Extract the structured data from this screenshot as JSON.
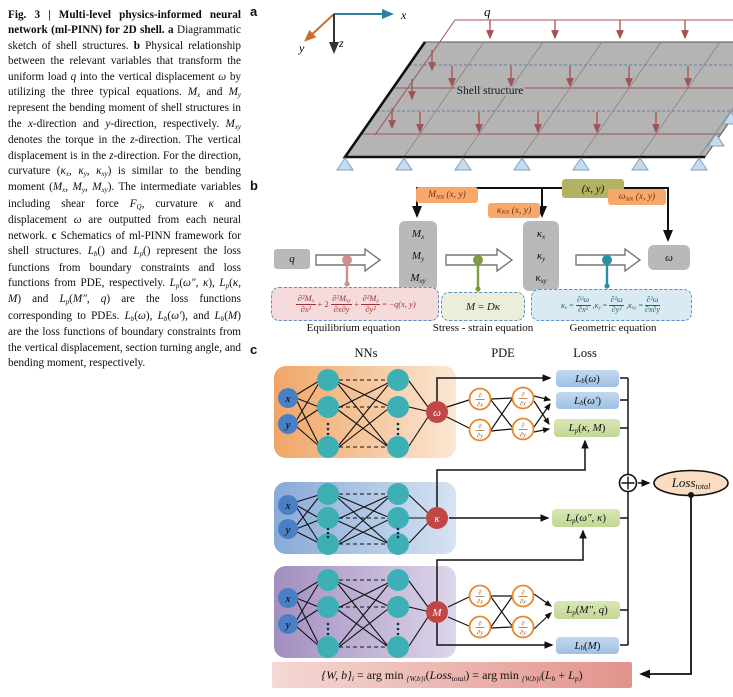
{
  "caption": {
    "segments": [
      {
        "t": "Fig. 3 | Multi-level physics-informed neural network (ml-PINN) for 2D shell. ",
        "s": "b"
      },
      {
        "t": "a",
        "s": "b"
      },
      {
        "t": " Diagrammatic sketch of shell structures. ",
        "s": ""
      },
      {
        "t": "b",
        "s": "b"
      },
      {
        "t": " Physical relationship between the relevant variables that transform the uniform load ",
        "s": ""
      },
      {
        "t": "q",
        "s": "i"
      },
      {
        "t": " into the vertical displacement ",
        "s": ""
      },
      {
        "t": "ω",
        "s": "i"
      },
      {
        "t": " by utilizing the three typical equations. ",
        "s": ""
      },
      {
        "t": "M",
        "s": "i"
      },
      {
        "t": "x",
        "s": "i sub"
      },
      {
        "t": " and ",
        "s": ""
      },
      {
        "t": "M",
        "s": "i"
      },
      {
        "t": "y",
        "s": "i sub"
      },
      {
        "t": " represent the bending moment of shell structures in the ",
        "s": ""
      },
      {
        "t": "x",
        "s": "i"
      },
      {
        "t": "-direction and ",
        "s": ""
      },
      {
        "t": "y",
        "s": "i"
      },
      {
        "t": "-direction, respectively. ",
        "s": ""
      },
      {
        "t": "M",
        "s": "i"
      },
      {
        "t": "xy",
        "s": "i sub"
      },
      {
        "t": " denotes the torque in the ",
        "s": ""
      },
      {
        "t": "z",
        "s": "i"
      },
      {
        "t": "-direction. The vertical displacement is in the ",
        "s": ""
      },
      {
        "t": "z",
        "s": "i"
      },
      {
        "t": "-direction. For the direction, curvature (",
        "s": ""
      },
      {
        "t": "κ",
        "s": "i"
      },
      {
        "t": "x",
        "s": "i sub"
      },
      {
        "t": ", ",
        "s": ""
      },
      {
        "t": "κ",
        "s": "i"
      },
      {
        "t": "y",
        "s": "i sub"
      },
      {
        "t": ", ",
        "s": ""
      },
      {
        "t": "κ",
        "s": "i"
      },
      {
        "t": "xy",
        "s": "i sub"
      },
      {
        "t": ") is similar to the bending moment (",
        "s": ""
      },
      {
        "t": "M",
        "s": "i"
      },
      {
        "t": "x",
        "s": "i sub"
      },
      {
        "t": ", ",
        "s": ""
      },
      {
        "t": "M",
        "s": "i"
      },
      {
        "t": "y",
        "s": "i sub"
      },
      {
        "t": ", ",
        "s": ""
      },
      {
        "t": "M",
        "s": "i"
      },
      {
        "t": "xy",
        "s": "i sub"
      },
      {
        "t": "). The intermediate variables including shear force ",
        "s": ""
      },
      {
        "t": "F",
        "s": "i"
      },
      {
        "t": "Q",
        "s": "i sub"
      },
      {
        "t": ", curvature ",
        "s": ""
      },
      {
        "t": "κ",
        "s": "i"
      },
      {
        "t": " and displacement ",
        "s": ""
      },
      {
        "t": "ω",
        "s": "i"
      },
      {
        "t": " are outputted from each neural network. ",
        "s": ""
      },
      {
        "t": "c",
        "s": "b"
      },
      {
        "t": " Schematics of ml-PINN framework for shell structures. ",
        "s": ""
      },
      {
        "t": "L",
        "s": "i"
      },
      {
        "t": "b",
        "s": "i sub"
      },
      {
        "t": "() and ",
        "s": ""
      },
      {
        "t": "L",
        "s": "i"
      },
      {
        "t": "p",
        "s": "i sub"
      },
      {
        "t": "() represent the loss functions from boundary constraints and loss functions from PDE, respectively. ",
        "s": ""
      },
      {
        "t": "L",
        "s": "i"
      },
      {
        "t": "p",
        "s": "i sub"
      },
      {
        "t": "(",
        "s": ""
      },
      {
        "t": "ω″",
        "s": "i"
      },
      {
        "t": ", ",
        "s": ""
      },
      {
        "t": "κ",
        "s": "i"
      },
      {
        "t": "), ",
        "s": ""
      },
      {
        "t": "L",
        "s": "i"
      },
      {
        "t": "p",
        "s": "i sub"
      },
      {
        "t": "(",
        "s": ""
      },
      {
        "t": "κ",
        "s": "i"
      },
      {
        "t": ", ",
        "s": ""
      },
      {
        "t": "M",
        "s": "i"
      },
      {
        "t": ") and ",
        "s": ""
      },
      {
        "t": "L",
        "s": "i"
      },
      {
        "t": "p",
        "s": "i sub"
      },
      {
        "t": "(",
        "s": ""
      },
      {
        "t": "M″",
        "s": "i"
      },
      {
        "t": ", ",
        "s": ""
      },
      {
        "t": "q",
        "s": "i"
      },
      {
        "t": ") are the loss functions corresponding to PDEs. ",
        "s": ""
      },
      {
        "t": "L",
        "s": "i"
      },
      {
        "t": "b",
        "s": "i sub"
      },
      {
        "t": "(",
        "s": ""
      },
      {
        "t": "ω",
        "s": "i"
      },
      {
        "t": "), ",
        "s": ""
      },
      {
        "t": "L",
        "s": "i"
      },
      {
        "t": "b",
        "s": "i sub"
      },
      {
        "t": "(",
        "s": ""
      },
      {
        "t": "ω′",
        "s": "i"
      },
      {
        "t": "), and ",
        "s": ""
      },
      {
        "t": "L",
        "s": "i"
      },
      {
        "t": "b",
        "s": "i sub"
      },
      {
        "t": "(",
        "s": ""
      },
      {
        "t": "M",
        "s": "i"
      },
      {
        "t": ") are the loss functions of boundary constraints from the vertical displacement, section turning angle, and bending moment, respectively.",
        "s": ""
      }
    ]
  },
  "panels": {
    "a": "a",
    "b": "b",
    "c": "c"
  },
  "panel_a": {
    "q": "q",
    "x": "x",
    "y": "y",
    "z": "z",
    "shell": "Shell structure"
  },
  "panel_b": {
    "xy": [
      {
        "t": "(x, y)",
        "s": "i"
      }
    ],
    "mnn": [
      {
        "t": "M",
        "s": "i"
      },
      {
        "t": "NN",
        "s": "i sub"
      },
      {
        "t": " (x, y)",
        "s": "i"
      }
    ],
    "knn": [
      {
        "t": "κ",
        "s": "i"
      },
      {
        "t": "NN",
        "s": "i sub"
      },
      {
        "t": " (x, y)",
        "s": "i"
      }
    ],
    "wnn": [
      {
        "t": "ω",
        "s": "i"
      },
      {
        "t": "NN",
        "s": "i sub"
      },
      {
        "t": " (x, y)",
        "s": "i"
      }
    ],
    "q": [
      {
        "t": "q",
        "s": "i"
      }
    ],
    "w": [
      {
        "t": "ω",
        "s": "i"
      }
    ],
    "m_rows": {
      "r1": [
        {
          "t": "M",
          "s": "i"
        },
        {
          "t": "x",
          "s": "i sub"
        }
      ],
      "r2": [
        {
          "t": "M",
          "s": "i"
        },
        {
          "t": "y",
          "s": "i sub"
        }
      ],
      "r3": [
        {
          "t": "M",
          "s": "i"
        },
        {
          "t": "xy",
          "s": "i sub"
        }
      ]
    },
    "k_rows": {
      "r1": [
        {
          "t": "κ",
          "s": "i"
        },
        {
          "t": "x",
          "s": "i sub"
        }
      ],
      "r2": [
        {
          "t": "κ",
          "s": "i"
        },
        {
          "t": "y",
          "s": "i sub"
        }
      ],
      "r3": [
        {
          "t": "κ",
          "s": "i"
        },
        {
          "t": "xy",
          "s": "i sub"
        }
      ]
    },
    "eq1": {
      "f1n": [
        {
          "t": "∂²M",
          "s": "i"
        },
        {
          "t": "x",
          "s": "i sub"
        }
      ],
      "f1d": [
        {
          "t": "∂x²",
          "s": "i"
        }
      ],
      "op1": [
        {
          "t": "+ 2",
          "s": ""
        }
      ],
      "f2n": [
        {
          "t": "∂²M",
          "s": "i"
        },
        {
          "t": "xy",
          "s": "i sub"
        }
      ],
      "f2d": [
        {
          "t": "∂x∂y",
          "s": "i"
        }
      ],
      "op2": [
        {
          "t": "+",
          "s": ""
        }
      ],
      "f3n": [
        {
          "t": "∂²M",
          "s": "i"
        },
        {
          "t": "y",
          "s": "i sub"
        }
      ],
      "f3d": [
        {
          "t": "∂y²",
          "s": "i"
        }
      ],
      "rhs": [
        {
          "t": " = −",
          "s": ""
        },
        {
          "t": "q",
          "s": "i"
        },
        {
          "t": "(x, y)",
          "s": "i"
        }
      ]
    },
    "eq2": [
      {
        "t": "M",
        "s": "i"
      },
      {
        "t": " = ",
        "s": ""
      },
      {
        "t": "D",
        "s": "i"
      },
      {
        "t": "κ",
        "s": "i"
      }
    ],
    "eq3": {
      "g1l": [
        {
          "t": "κ",
          "s": "i"
        },
        {
          "t": "x",
          "s": "i sub"
        },
        {
          "t": " = ",
          "s": ""
        }
      ],
      "g1n": [
        {
          "t": "∂²ω",
          "s": "i"
        }
      ],
      "g1d": [
        {
          "t": "∂x²",
          "s": "i"
        }
      ],
      "s1": [
        {
          "t": ", ",
          "s": ""
        }
      ],
      "g2l": [
        {
          "t": "κ",
          "s": "i"
        },
        {
          "t": "y",
          "s": "i sub"
        },
        {
          "t": " = ",
          "s": ""
        }
      ],
      "g2n": [
        {
          "t": "∂²ω",
          "s": "i"
        }
      ],
      "g2d": [
        {
          "t": "∂y²",
          "s": "i"
        }
      ],
      "s2": [
        {
          "t": ", ",
          "s": ""
        }
      ],
      "g3l": [
        {
          "t": "κ",
          "s": "i"
        },
        {
          "t": "xy",
          "s": "i sub"
        },
        {
          "t": " = ",
          "s": ""
        }
      ],
      "g3n": [
        {
          "t": "∂²ω",
          "s": "i"
        }
      ],
      "g3d": [
        {
          "t": "∂x∂y",
          "s": "i"
        }
      ]
    },
    "labels": {
      "eq1": "Equilibrium equation",
      "eq2": "Stress - strain equation",
      "eq3": "Geometric equation"
    }
  },
  "panel_c": {
    "headers": {
      "nns": "NNs",
      "pde": "PDE",
      "loss": "Loss"
    },
    "nn_inputs": {
      "x": "x",
      "y": "y"
    },
    "outputs": {
      "w": "ω",
      "k": "κ",
      "m": "M"
    },
    "deriv": {
      "num": "∂",
      "dx": "∂x",
      "dy": "∂y"
    },
    "losses": {
      "lb_w": [
        {
          "t": "L",
          "s": "i"
        },
        {
          "t": "b",
          "s": "i sub"
        },
        {
          "t": "(",
          "s": ""
        },
        {
          "t": "ω",
          "s": "i"
        },
        {
          "t": ")",
          "s": ""
        }
      ],
      "lb_wp": [
        {
          "t": "L",
          "s": "i"
        },
        {
          "t": "b",
          "s": "i sub"
        },
        {
          "t": "(",
          "s": ""
        },
        {
          "t": "ω′",
          "s": "i"
        },
        {
          "t": ")",
          "s": ""
        }
      ],
      "lp_km": [
        {
          "t": "L",
          "s": "i"
        },
        {
          "t": "p",
          "s": "i sub"
        },
        {
          "t": "(",
          "s": ""
        },
        {
          "t": "κ",
          "s": "i"
        },
        {
          "t": ", ",
          "s": ""
        },
        {
          "t": "M",
          "s": "i"
        },
        {
          "t": ")",
          "s": ""
        }
      ],
      "lp_wk": [
        {
          "t": "L",
          "s": "i"
        },
        {
          "t": "p",
          "s": "i sub"
        },
        {
          "t": "(",
          "s": ""
        },
        {
          "t": "ω″",
          "s": "i"
        },
        {
          "t": ", ",
          "s": ""
        },
        {
          "t": "κ",
          "s": "i"
        },
        {
          "t": ")",
          "s": ""
        }
      ],
      "lp_mq": [
        {
          "t": "L",
          "s": "i"
        },
        {
          "t": "p",
          "s": "i sub"
        },
        {
          "t": "(",
          "s": ""
        },
        {
          "t": "M″",
          "s": "i"
        },
        {
          "t": ", ",
          "s": ""
        },
        {
          "t": "q",
          "s": "i"
        },
        {
          "t": ")",
          "s": ""
        }
      ],
      "lb_m": [
        {
          "t": "L",
          "s": "i"
        },
        {
          "t": "b",
          "s": "i sub"
        },
        {
          "t": "(",
          "s": ""
        },
        {
          "t": "M",
          "s": "i"
        },
        {
          "t": ")",
          "s": ""
        }
      ]
    },
    "loss_total": [
      {
        "t": "Loss",
        "s": "i"
      },
      {
        "t": "total",
        "s": "i sub"
      }
    ],
    "equation": [
      {
        "t": "{W, b}",
        "s": "i"
      },
      {
        "t": "i",
        "s": "i sub"
      },
      {
        "t": " = arg min ",
        "s": ""
      },
      {
        "t": "{W,b}i",
        "s": "i sub"
      },
      {
        "t": "(",
        "s": ""
      },
      {
        "t": "Loss",
        "s": "i"
      },
      {
        "t": "total",
        "s": "i sub"
      },
      {
        "t": ") = arg min ",
        "s": ""
      },
      {
        "t": "{W,b}i",
        "s": "i sub"
      },
      {
        "t": "(",
        "s": ""
      },
      {
        "t": "L",
        "s": "i"
      },
      {
        "t": "b",
        "s": "i sub"
      },
      {
        "t": " + ",
        "s": ""
      },
      {
        "t": "L",
        "s": "i"
      },
      {
        "t": "p",
        "s": "i sub"
      },
      {
        "t": ")",
        "s": ""
      }
    ]
  },
  "colors": {
    "axis_x": "#2e7f9e",
    "axis_y": "#cc6e2a",
    "axis_z": "#333333",
    "plate": "#b4b4b4",
    "load_arrow": "#a05353",
    "support": "#c6dcee",
    "gray_node": "#b9b9b9",
    "olive_box": "#b2b263",
    "orange_label": "#f6a96b",
    "eq_pink": "#f6dbdc",
    "eq_green": "#e9efd8",
    "eq_blue": "#d9eaf3",
    "dot_pink": "#d28f8f",
    "dot_green": "#7f9b40",
    "dot_teal": "#2b8fa3",
    "nn_input": "#4a7ec5",
    "nn_hidden": "#3db0b5",
    "nn_output": "#c14747",
    "deriv_ring": "#e8872a",
    "loss_blue": "#9fc0e4",
    "loss_green": "#c2d795",
    "loss_total_fill": "#f9dcc2",
    "bottom_eq": "#e2938b"
  }
}
